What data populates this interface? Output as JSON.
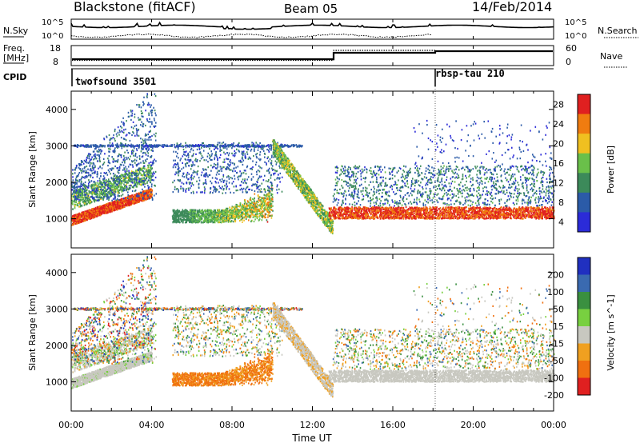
{
  "header": {
    "station": "Blackstone (fitACF)",
    "beam": "Beam 05",
    "date": "14/Feb/2014"
  },
  "left_labels": {
    "nsky": "N.Sky",
    "nsky_hi": "10^5",
    "nsky_lo": "10^0",
    "freq": "Freq.",
    "freq_unit": "[MHz]",
    "freq_hi": "18",
    "freq_lo": "8",
    "cpid": "CPID"
  },
  "right_labels": {
    "nsearch": "N.Search",
    "nsearch_hi": "10^5",
    "nsearch_lo": "10^0",
    "nave": "Nave",
    "nave_hi": "60",
    "nave_lo": "0"
  },
  "cpid_labels": [
    "twofsound 3501",
    "rbsp-tau 210"
  ],
  "xaxis": {
    "label": "Time UT",
    "ticks": [
      "00:00",
      "04:00",
      "08:00",
      "12:00",
      "16:00",
      "20:00",
      "00:00"
    ]
  },
  "chart_data": [
    {
      "type": "heatmap",
      "name": "power",
      "ylabel": "Slant Range [km]",
      "yticks": [
        1000,
        2000,
        3000,
        4000
      ],
      "ylim": [
        200,
        4500
      ],
      "xlim": [
        0,
        24
      ],
      "colorbar": {
        "label": "Power [dB]",
        "ticks": [
          4,
          8,
          12,
          16,
          20,
          24,
          28
        ],
        "colors": [
          "#2b2bd8",
          "#2b5ba8",
          "#3c8a5a",
          "#6ac04a",
          "#f0c020",
          "#f07c10",
          "#e02020"
        ]
      }
    },
    {
      "type": "heatmap",
      "name": "velocity",
      "ylabel": "Slant Range [km]",
      "yticks": [
        1000,
        2000,
        3000,
        4000
      ],
      "ylim": [
        200,
        4500
      ],
      "xlim": [
        0,
        24
      ],
      "colorbar": {
        "label": "Velocity [m s^-1]",
        "ticks": [
          200,
          100,
          50,
          15,
          -15,
          -50,
          -100,
          -200
        ],
        "colors": [
          "#2030c0",
          "#3a6ab0",
          "#3a9040",
          "#78d040",
          "#c8c8c0",
          "#f0a020",
          "#f07010",
          "#e02020"
        ]
      }
    }
  ]
}
